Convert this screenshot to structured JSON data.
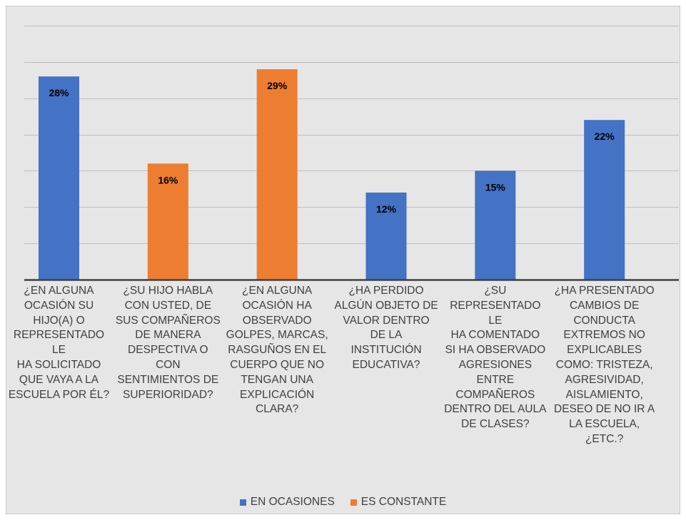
{
  "chart_data": {
    "type": "bar",
    "categories": [
      "¿EN ALGUNA OCASIÓN SU HIJO(A) O REPRESENTADO LE HA SOLICITADO QUE VAYA A LA ESCUELA POR ÉL?",
      "¿SU HIJO HABLA CON USTED, DE SUS COMPAÑEROS DE MANERA DESPECTIVA O CON SENTIMIENTOS DE SUPERIORIDAD?",
      "¿EN ALGUNA OCASIÓN HA OBSERVADO GOLPES, MARCAS, RASGUÑOS EN EL CUERPO QUE NO TENGAN UNA EXPLICACIÓN CLARA?",
      "¿HA PERDIDO ALGÚN OBJETO DE VALOR DENTRO DE LA INSTITUCIÓN EDUCATIVA?",
      "¿SU REPRESENTADO LE HA COMENTADO SI HA OBSERVADO AGRESIONES ENTRE COMPAÑEROS DENTRO DEL AULA DE CLASES?",
      "¿HA PRESENTADO CAMBIOS DE CONDUCTA EXTREMOS NO EXPLICABLES COMO: TRISTEZA, AGRESIVIDAD, AISLAMIENTO, DESEO DE NO IR A LA ESCUELA, ¿ETC.?"
    ],
    "category_lines": [
      [
        "¿EN ALGUNA",
        "OCASIÓN SU",
        "HIJO(A) O",
        "REPRESENTADO LE",
        "HA SOLICITADO",
        "QUE VAYA A LA",
        "ESCUELA POR ÉL?"
      ],
      [
        "¿SU HIJO HABLA",
        "CON USTED, DE",
        "SUS COMPAÑEROS",
        "DE MANERA",
        "DESPECTIVA O",
        "CON",
        "SENTIMIENTOS DE",
        "SUPERIORIDAD?"
      ],
      [
        "¿EN ALGUNA",
        "OCASIÓN HA",
        "OBSERVADO",
        "GOLPES, MARCAS,",
        "RASGUÑOS EN EL",
        "CUERPO QUE NO",
        "TENGAN UNA",
        "EXPLICACIÓN",
        "CLARA?"
      ],
      [
        "¿HA PERDIDO",
        "ALGÚN OBJETO DE",
        "VALOR DENTRO",
        "DE LA",
        "INSTITUCIÓN",
        "EDUCATIVA?"
      ],
      [
        "¿SU",
        "REPRESENTADO LE",
        "HA COMENTADO",
        "SI HA OBSERVADO",
        "AGRESIONES",
        "ENTRE",
        "COMPAÑEROS",
        "DENTRO DEL AULA",
        "DE CLASES?"
      ],
      [
        "¿HA PRESENTADO",
        "CAMBIOS DE",
        "CONDUCTA",
        "EXTREMOS NO",
        "EXPLICABLES",
        "COMO: TRISTEZA,",
        "AGRESIVIDAD,",
        "AISLAMIENTO,",
        "DESEO DE NO IR A",
        "LA ESCUELA,",
        "¿ETC.?"
      ]
    ],
    "series": [
      {
        "name": "EN OCASIONES",
        "color": "#4472c4",
        "values": [
          28,
          null,
          null,
          12,
          15,
          22
        ]
      },
      {
        "name": "ES CONSTANTE",
        "color": "#ed7d31",
        "values": [
          null,
          16,
          29,
          null,
          null,
          null
        ]
      }
    ],
    "data_labels": [
      "28%",
      "16%",
      "29%",
      "12%",
      "15%",
      "22%"
    ],
    "unit": "%",
    "ylim": [
      0,
      35
    ],
    "gridlines": true,
    "legend_position": "bottom",
    "xlabel": "",
    "ylabel": "",
    "title": ""
  },
  "colors": {
    "background": "#e7e6e6",
    "gridline": "#bfbfbf",
    "axis": "#404040",
    "label_text": "#404040",
    "data_label_text": "#000000"
  }
}
